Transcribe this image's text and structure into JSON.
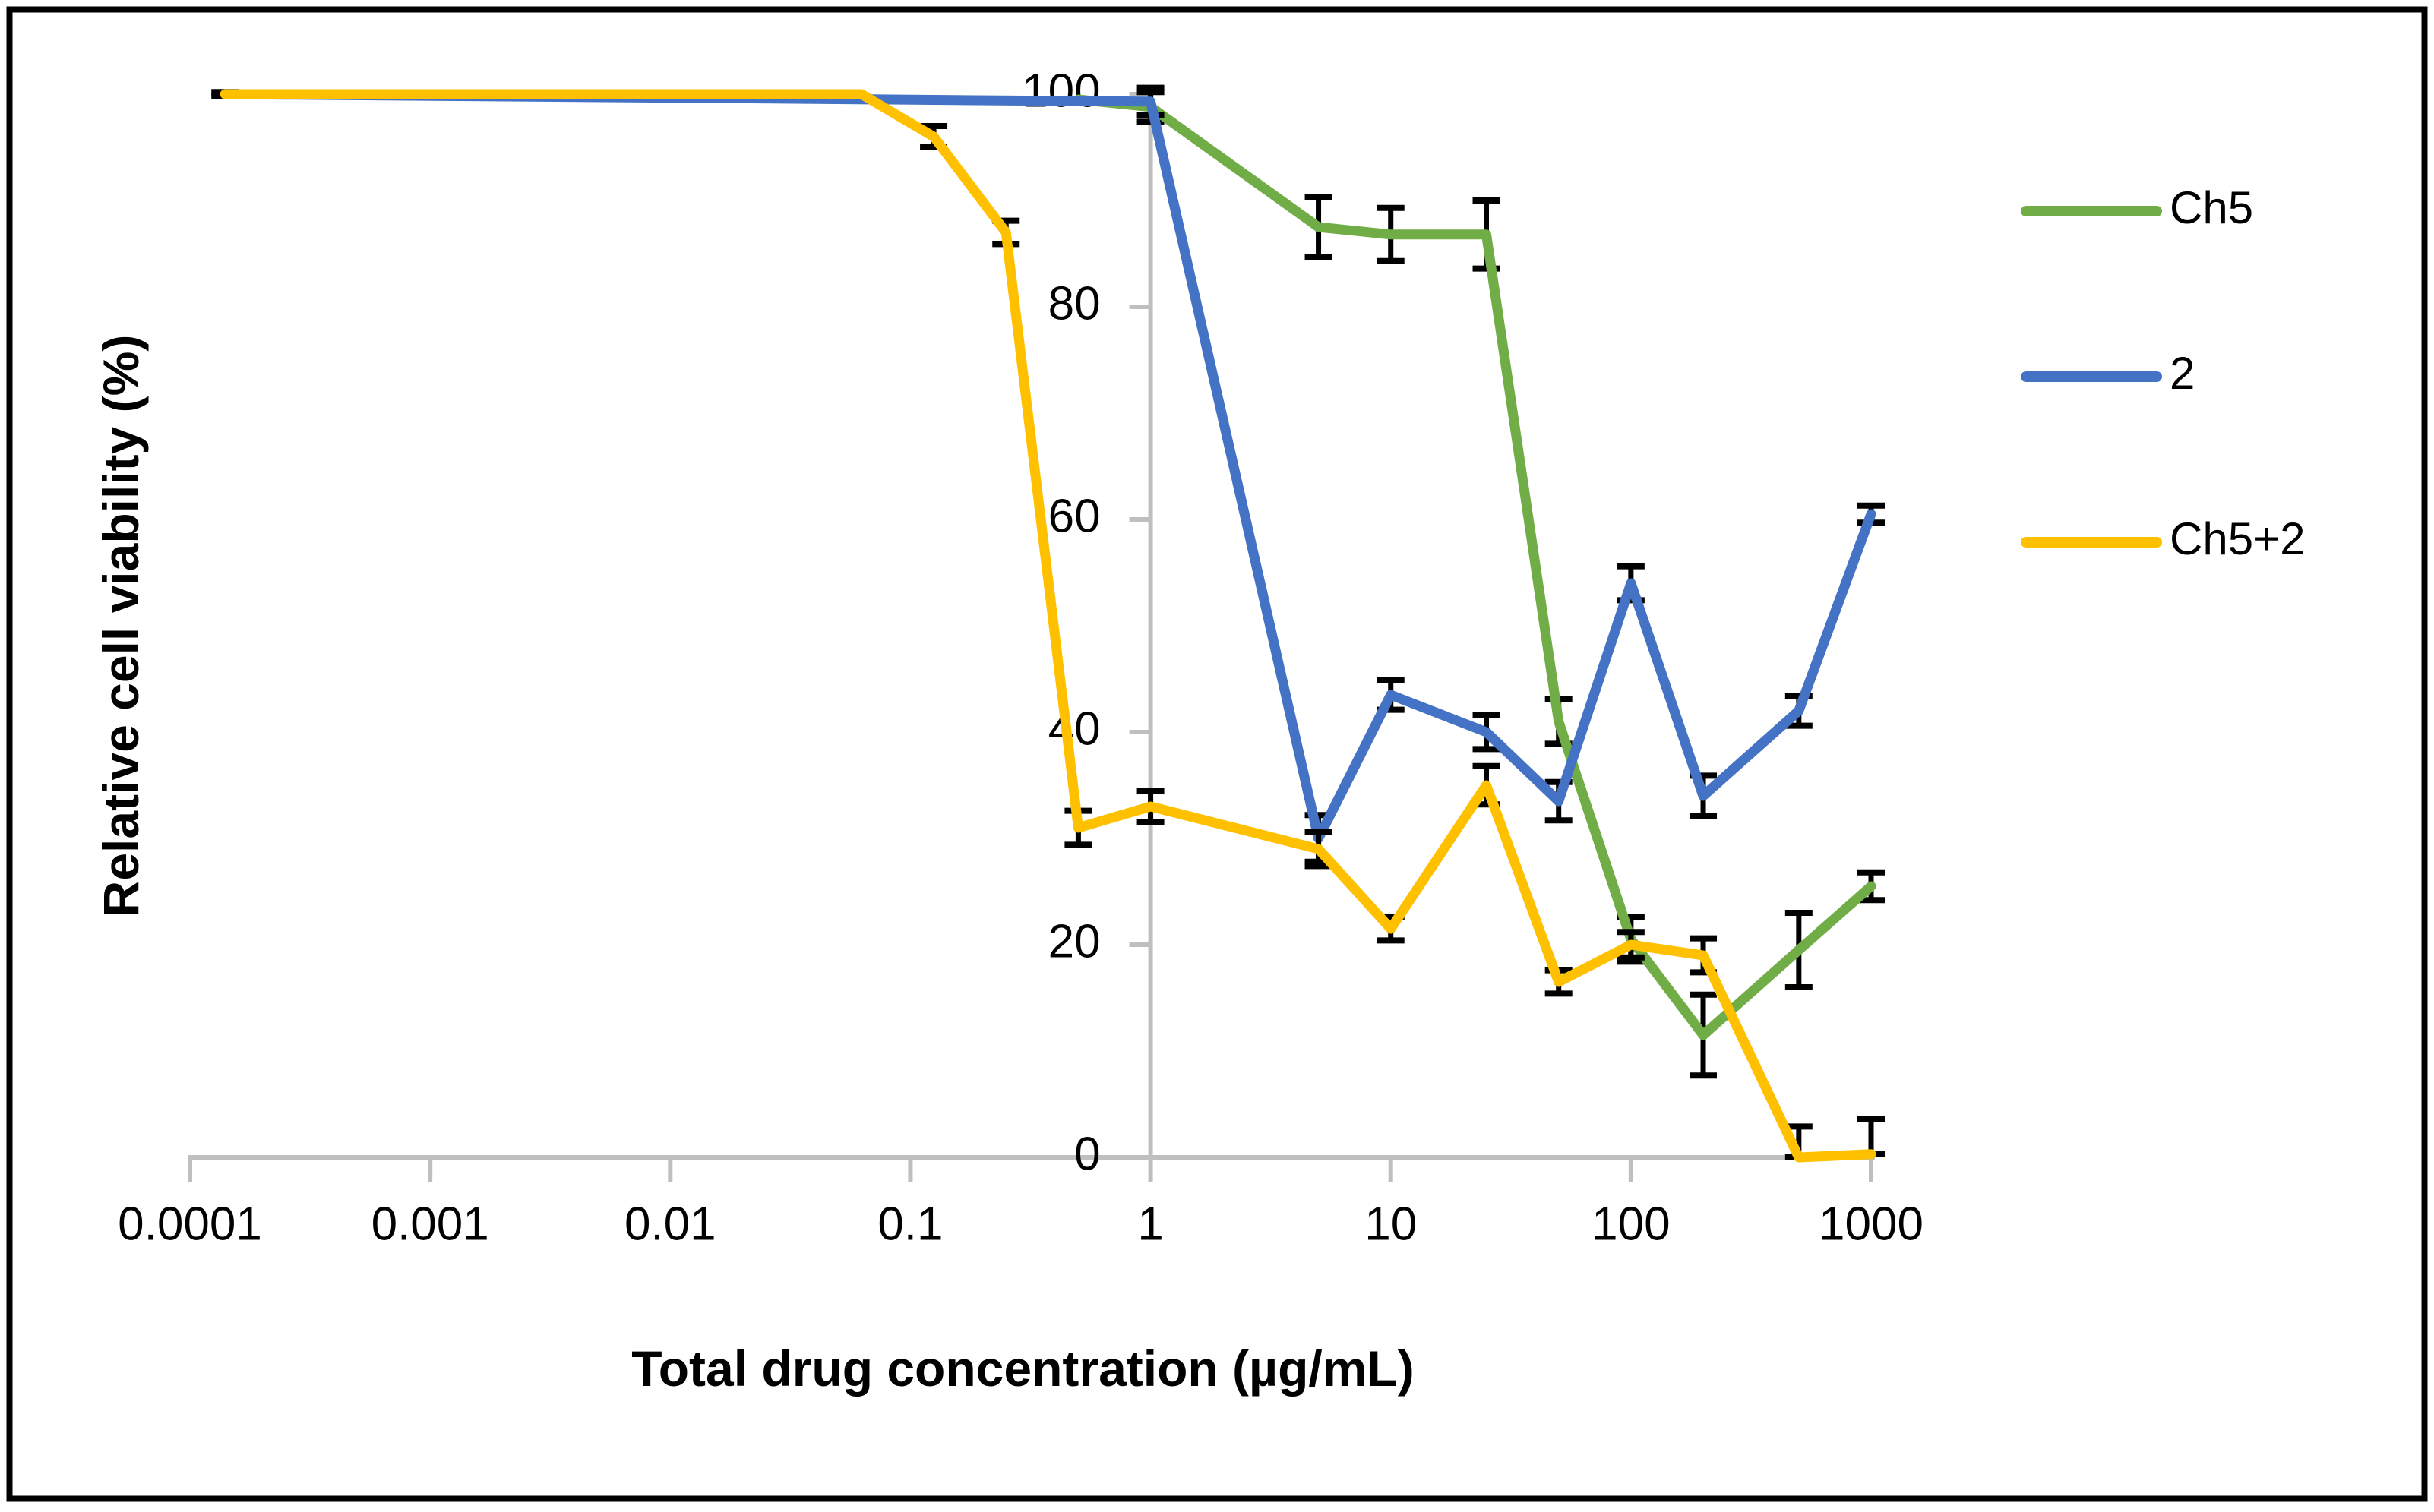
{
  "chart_data": {
    "type": "line",
    "title": "",
    "xlabel": "Total drug concentration (µg/mL)",
    "ylabel": "Relative cell viability (%)",
    "x_scale": "log",
    "xlim": [
      0.0001,
      1000
    ],
    "ylim": [
      0,
      100
    ],
    "x_ticks": [
      "0.0001",
      "0.001",
      "0.01",
      "0.1",
      "1",
      "10",
      "100",
      "1000"
    ],
    "y_ticks": [
      "0",
      "20",
      "40",
      "60",
      "80",
      "100"
    ],
    "grid": "off",
    "legend_position": "right",
    "axis_color": "#BFBFBF",
    "text_color": "#000000",
    "error_bar_color": "#000000",
    "series": [
      {
        "name": "Ch5",
        "color": "#70AD47",
        "points": [
          {
            "x": 0.5,
            "y": 99.5,
            "e": 0
          },
          {
            "x": 1,
            "y": 98.8,
            "e": 1.4
          },
          {
            "x": 5,
            "y": 87.5,
            "e": 2.8
          },
          {
            "x": 10,
            "y": 86.8,
            "e": 2.5
          },
          {
            "x": 25,
            "y": 86.8,
            "e": 3.2
          },
          {
            "x": 50,
            "y": 41,
            "e": 2.1
          },
          {
            "x": 100,
            "y": 20.5,
            "e": 2.1
          },
          {
            "x": 200,
            "y": 11.5,
            "e": 3.8
          },
          {
            "x": 500,
            "y": 19.5,
            "e": 3.5
          },
          {
            "x": 1000,
            "y": 25.5,
            "e": 1.3
          }
        ]
      },
      {
        "name": "2",
        "color": "#4472C4",
        "points": [
          {
            "x": 0.00014,
            "y": 100,
            "e": 0
          },
          {
            "x": 1,
            "y": 99.3,
            "e": 1.3
          },
          {
            "x": 5,
            "y": 30,
            "e": 2.2
          },
          {
            "x": 10,
            "y": 43.5,
            "e": 1.4
          },
          {
            "x": 25,
            "y": 40,
            "e": 1.6
          },
          {
            "x": 50,
            "y": 33.5,
            "e": 1.8
          },
          {
            "x": 100,
            "y": 54,
            "e": 1.6
          },
          {
            "x": 200,
            "y": 34,
            "e": 1.9
          },
          {
            "x": 500,
            "y": 42,
            "e": 1.4
          },
          {
            "x": 1000,
            "y": 60.5,
            "e": 0.8
          }
        ]
      },
      {
        "name": "Ch5+2",
        "color": "#FFC000",
        "points": [
          {
            "x": 0.00014,
            "y": 100,
            "e": 0.2
          },
          {
            "x": 0.0625,
            "y": 100,
            "e": 0
          },
          {
            "x": 0.125,
            "y": 96,
            "e": 1
          },
          {
            "x": 0.25,
            "y": 87,
            "e": 1.1
          },
          {
            "x": 0.5,
            "y": 31,
            "e": 1.6
          },
          {
            "x": 1,
            "y": 33,
            "e": 1.5
          },
          {
            "x": 5,
            "y": 29,
            "e": 1.6
          },
          {
            "x": 10,
            "y": 21.5,
            "e": 1.1
          },
          {
            "x": 25,
            "y": 35,
            "e": 1.8
          },
          {
            "x": 50,
            "y": 16.5,
            "e": 1.1
          },
          {
            "x": 100,
            "y": 20,
            "e": 1.2
          },
          {
            "x": 200,
            "y": 19,
            "e": 1.6
          },
          {
            "x": 500,
            "y": 0,
            "e_up": 2.9,
            "e_dn": 0,
            "e": 0
          },
          {
            "x": 1000,
            "y": 0.3,
            "e_up": 3.3,
            "e_dn": 0,
            "e": 0
          }
        ]
      }
    ]
  }
}
